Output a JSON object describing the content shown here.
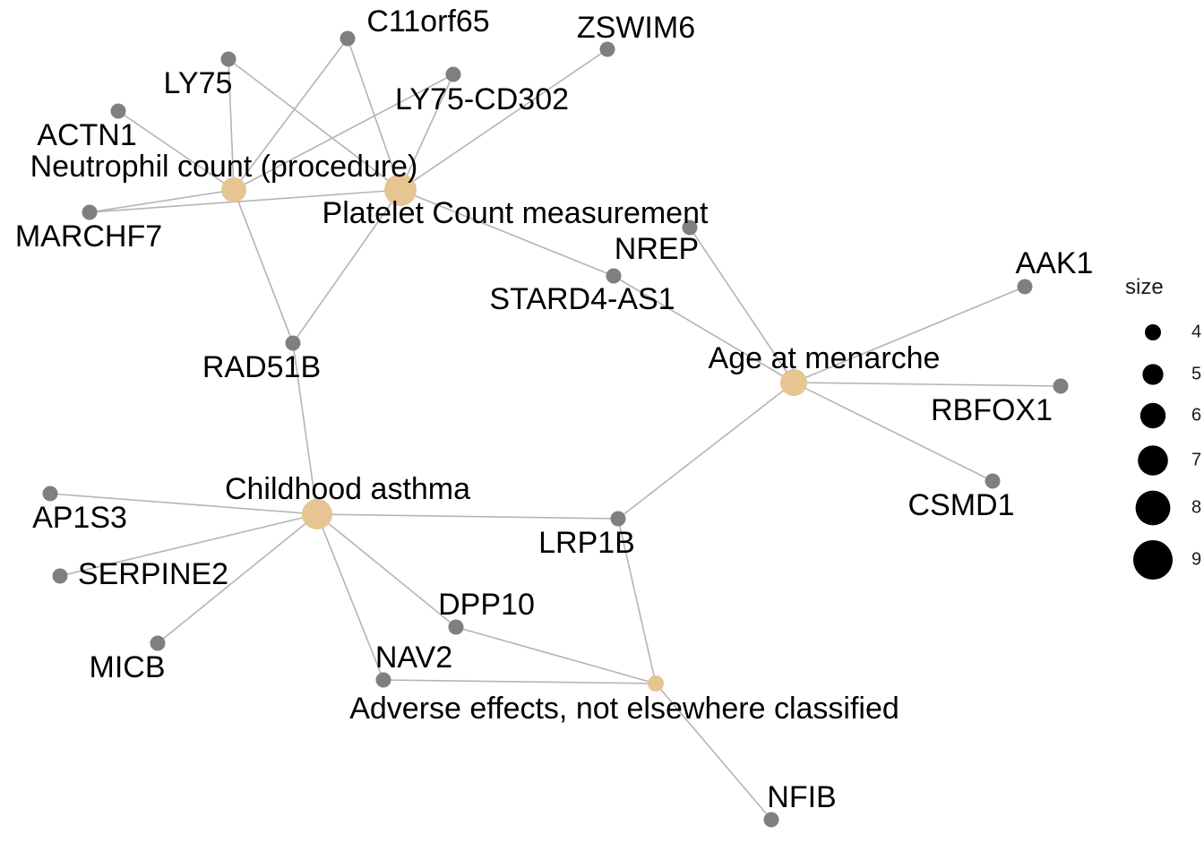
{
  "network": {
    "terms": [
      {
        "id": "neutrophil",
        "label": "Neutrophil count (procedure)"
      },
      {
        "id": "platelet",
        "label": "Platelet Count measurement"
      },
      {
        "id": "menarche",
        "label": "Age at menarche"
      },
      {
        "id": "asthma",
        "label": "Childhood asthma"
      },
      {
        "id": "adverse",
        "label": "Adverse effects, not elsewhere classified"
      }
    ],
    "genes": [
      {
        "id": "C11orf65",
        "label": "C11orf65"
      },
      {
        "id": "ZSWIM6",
        "label": "ZSWIM6"
      },
      {
        "id": "LY75",
        "label": "LY75"
      },
      {
        "id": "LY75-CD302",
        "label": "LY75-CD302"
      },
      {
        "id": "ACTN1",
        "label": "ACTN1"
      },
      {
        "id": "MARCHF7",
        "label": "MARCHF7"
      },
      {
        "id": "NREP",
        "label": "NREP"
      },
      {
        "id": "STARD4-AS1",
        "label": "STARD4-AS1"
      },
      {
        "id": "AAK1",
        "label": "AAK1"
      },
      {
        "id": "RBFOX1",
        "label": "RBFOX1"
      },
      {
        "id": "CSMD1",
        "label": "CSMD1"
      },
      {
        "id": "RAD51B",
        "label": "RAD51B"
      },
      {
        "id": "AP1S3",
        "label": "AP1S3"
      },
      {
        "id": "SERPINE2",
        "label": "SERPINE2"
      },
      {
        "id": "MICB",
        "label": "MICB"
      },
      {
        "id": "LRP1B",
        "label": "LRP1B"
      },
      {
        "id": "DPP10",
        "label": "DPP10"
      },
      {
        "id": "NAV2",
        "label": "NAV2"
      },
      {
        "id": "NFIB",
        "label": "NFIB"
      }
    ],
    "edges": [
      [
        "neutrophil",
        "C11orf65"
      ],
      [
        "neutrophil",
        "LY75"
      ],
      [
        "neutrophil",
        "LY75-CD302"
      ],
      [
        "neutrophil",
        "ACTN1"
      ],
      [
        "neutrophil",
        "MARCHF7"
      ],
      [
        "neutrophil",
        "RAD51B"
      ],
      [
        "platelet",
        "C11orf65"
      ],
      [
        "platelet",
        "ZSWIM6"
      ],
      [
        "platelet",
        "LY75"
      ],
      [
        "platelet",
        "LY75-CD302"
      ],
      [
        "platelet",
        "MARCHF7"
      ],
      [
        "platelet",
        "STARD4-AS1"
      ],
      [
        "platelet",
        "RAD51B"
      ],
      [
        "menarche",
        "NREP"
      ],
      [
        "menarche",
        "STARD4-AS1"
      ],
      [
        "menarche",
        "AAK1"
      ],
      [
        "menarche",
        "RBFOX1"
      ],
      [
        "menarche",
        "CSMD1"
      ],
      [
        "menarche",
        "LRP1B"
      ],
      [
        "asthma",
        "RAD51B"
      ],
      [
        "asthma",
        "AP1S3"
      ],
      [
        "asthma",
        "SERPINE2"
      ],
      [
        "asthma",
        "MICB"
      ],
      [
        "asthma",
        "LRP1B"
      ],
      [
        "asthma",
        "DPP10"
      ],
      [
        "asthma",
        "NAV2"
      ],
      [
        "adverse",
        "DPP10"
      ],
      [
        "adverse",
        "NAV2"
      ],
      [
        "adverse",
        "LRP1B"
      ],
      [
        "adverse",
        "NFIB"
      ]
    ]
  },
  "legend": {
    "title": "size",
    "entries": [
      {
        "label": "4",
        "size": 4
      },
      {
        "label": "5",
        "size": 5
      },
      {
        "label": "6",
        "size": 6
      },
      {
        "label": "7",
        "size": 7
      },
      {
        "label": "8",
        "size": 8
      },
      {
        "label": "9",
        "size": 9
      }
    ]
  },
  "colors": {
    "gene": "#7f7f7f",
    "term": "#e6c592",
    "edge": "#b4b4b4"
  }
}
